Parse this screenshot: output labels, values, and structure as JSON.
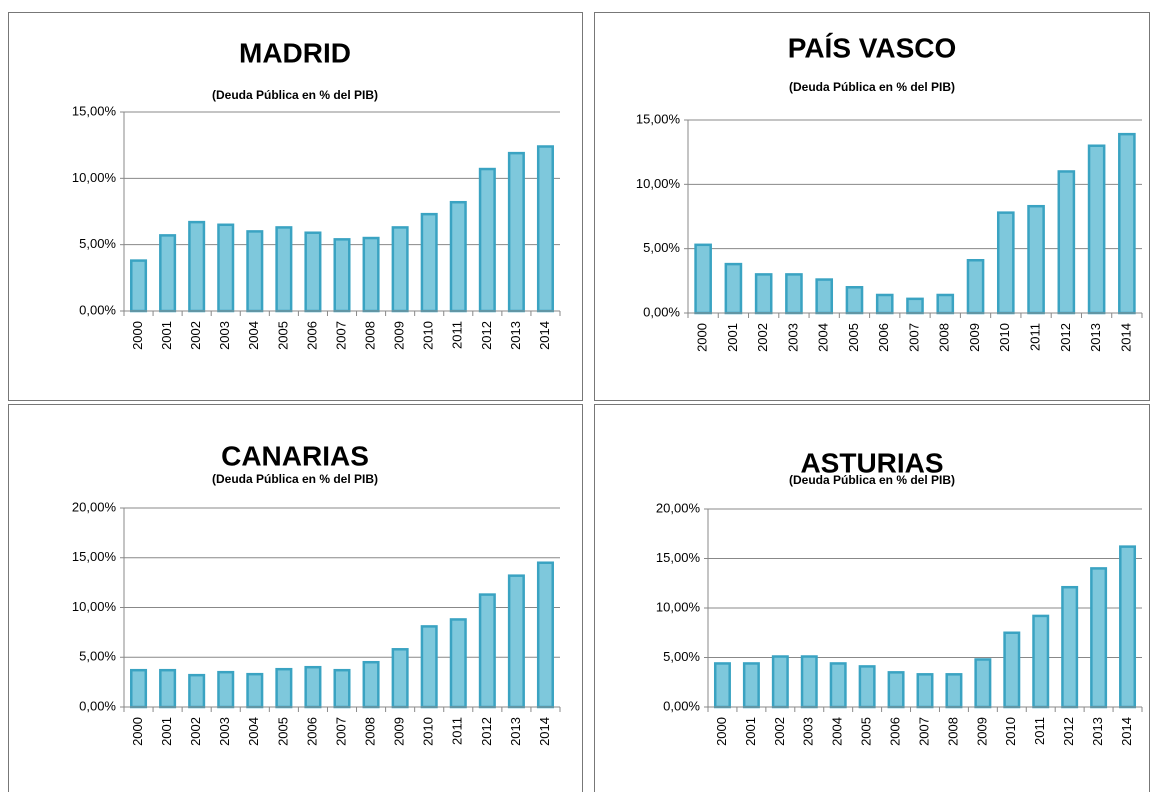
{
  "chart_data": [
    {
      "type": "bar",
      "title": "MADRID",
      "subtitle": "(Deuda Pública  en % del PIB)",
      "categories": [
        "2000",
        "2001",
        "2002",
        "2003",
        "2004",
        "2005",
        "2006",
        "2007",
        "2008",
        "2009",
        "2010",
        "2011",
        "2012",
        "2013",
        "2014"
      ],
      "values": [
        3.8,
        5.7,
        6.7,
        6.5,
        6.0,
        6.3,
        5.9,
        5.4,
        5.5,
        6.3,
        7.3,
        8.2,
        10.7,
        11.9,
        12.4
      ],
      "color": "#7ec8dc",
      "ylim": [
        0,
        15
      ],
      "yticks": [
        {
          "value": 0,
          "label": "0,00%"
        },
        {
          "value": 5,
          "label": "5,00%"
        },
        {
          "value": 10,
          "label": "10,00%"
        },
        {
          "value": 15,
          "label": "15,00%"
        }
      ],
      "grid": true
    },
    {
      "type": "bar",
      "title": "PAÍS VASCO",
      "subtitle": "(Deuda Pública  en % del PIB)",
      "categories": [
        "2000",
        "2001",
        "2002",
        "2003",
        "2004",
        "2005",
        "2006",
        "2007",
        "2008",
        "2009",
        "2010",
        "2011",
        "2012",
        "2013",
        "2014"
      ],
      "values": [
        5.3,
        3.8,
        3.0,
        3.0,
        2.6,
        2.0,
        1.4,
        1.1,
        1.4,
        4.1,
        7.8,
        8.3,
        11.0,
        13.0,
        13.9
      ],
      "color": "#7ec8dc",
      "ylim": [
        0,
        15
      ],
      "yticks": [
        {
          "value": 0,
          "label": "0,00%"
        },
        {
          "value": 5,
          "label": "5,00%"
        },
        {
          "value": 10,
          "label": "10,00%"
        },
        {
          "value": 15,
          "label": "15,00%"
        }
      ],
      "grid": true
    },
    {
      "type": "bar",
      "title": "CANARIAS",
      "subtitle": "(Deuda Pública  en % del PIB)",
      "categories": [
        "2000",
        "2001",
        "2002",
        "2003",
        "2004",
        "2005",
        "2006",
        "2007",
        "2008",
        "2009",
        "2010",
        "2011",
        "2012",
        "2013",
        "2014"
      ],
      "values": [
        3.7,
        3.7,
        3.2,
        3.5,
        3.3,
        3.8,
        4.0,
        3.7,
        4.5,
        5.8,
        8.1,
        8.8,
        11.3,
        13.2,
        14.5
      ],
      "color": "#7ec8dc",
      "ylim": [
        0,
        20
      ],
      "yticks": [
        {
          "value": 0,
          "label": "0,00%"
        },
        {
          "value": 5,
          "label": "5,00%"
        },
        {
          "value": 10,
          "label": "10,00%"
        },
        {
          "value": 15,
          "label": "15,00%"
        },
        {
          "value": 20,
          "label": "20,00%"
        }
      ],
      "grid": true
    },
    {
      "type": "bar",
      "title": "ASTURIAS",
      "subtitle": "(Deuda Pública  en % del PIB)",
      "categories": [
        "2000",
        "2001",
        "2002",
        "2003",
        "2004",
        "2005",
        "2006",
        "2007",
        "2008",
        "2009",
        "2010",
        "2011",
        "2012",
        "2013",
        "2014"
      ],
      "values": [
        4.4,
        4.4,
        5.1,
        5.1,
        4.4,
        4.1,
        3.5,
        3.3,
        3.3,
        4.8,
        7.5,
        9.2,
        12.1,
        14.0,
        16.2
      ],
      "color": "#7ec8dc",
      "ylim": [
        0,
        20
      ],
      "yticks": [
        {
          "value": 0,
          "label": "0,00%"
        },
        {
          "value": 5,
          "label": "5,00%"
        },
        {
          "value": 10,
          "label": "10,00%"
        },
        {
          "value": 15,
          "label": "15,00%"
        },
        {
          "value": 20,
          "label": "20,00%"
        }
      ],
      "grid": true
    }
  ]
}
